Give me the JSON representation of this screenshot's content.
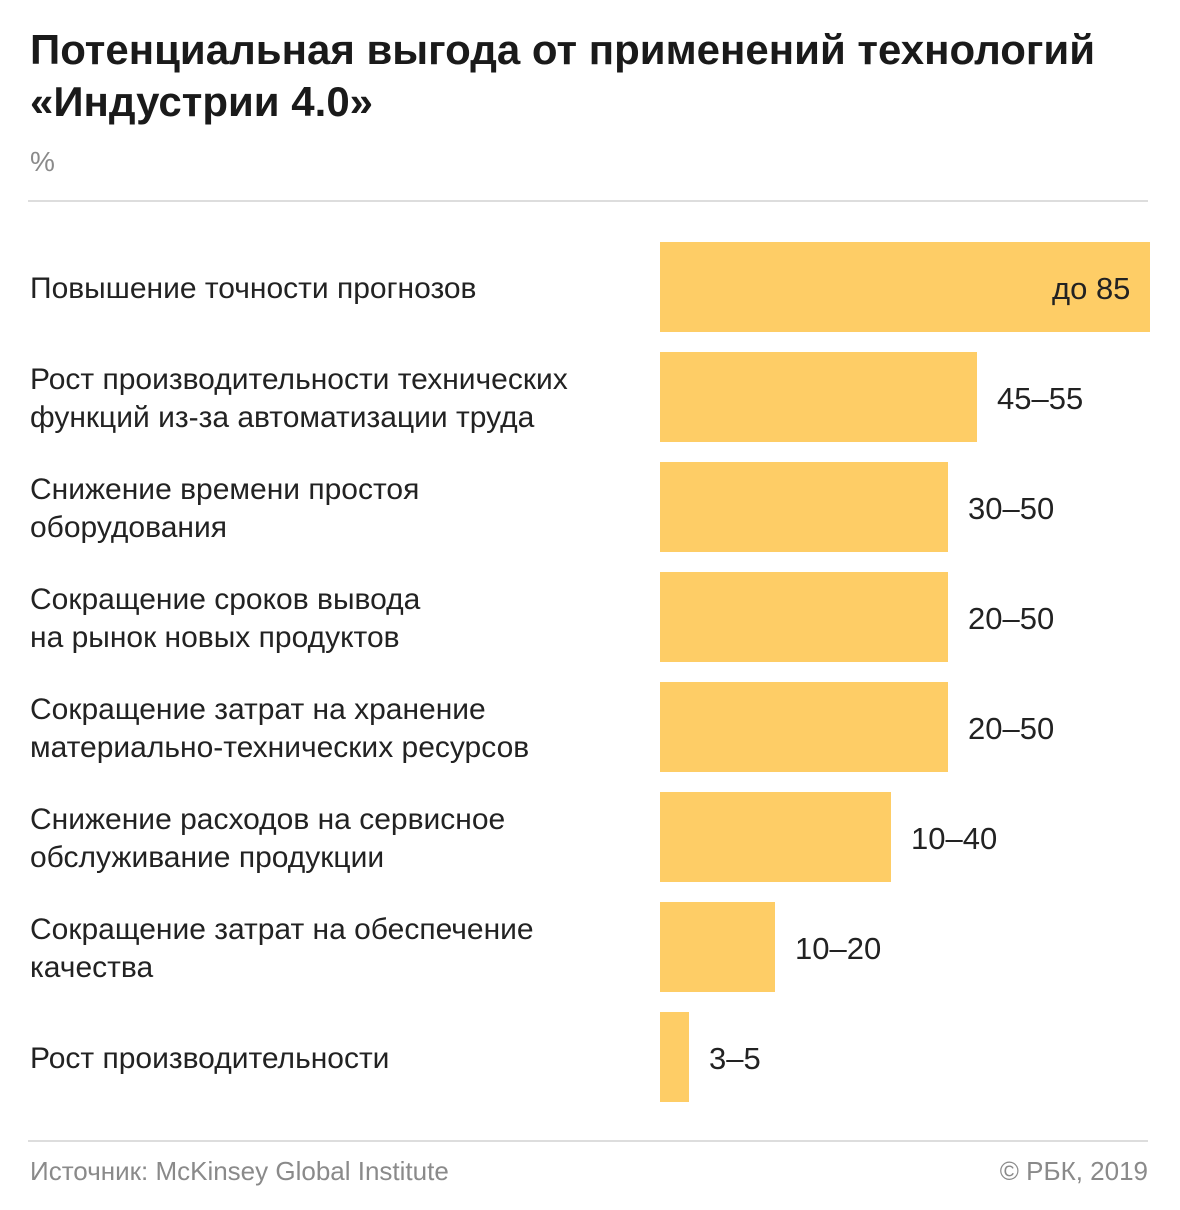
{
  "header": {
    "title": "Потенциальная выгода от применений технологий «Индустрии 4.0»",
    "unit": "%"
  },
  "chart_data": {
    "type": "bar",
    "orientation": "horizontal",
    "categories": [
      "Повышение точности прогнозов",
      "Рост производительности технических функций из-за автоматизации труда",
      "Снижение времени простоя оборудования",
      "Сокращение сроков вывода на рынок новых продуктов",
      "Сокращение затрат на хранение материально-технических ресурсов",
      "Снижение расходов на сервисное обслуживание продукции",
      "Сокращение затрат на обеспечение качества",
      "Рост производительности"
    ],
    "category_lines": [
      "Повышение точности прогнозов",
      "Рост производительности технических\nфункций из-за автоматизации труда",
      "Снижение времени простоя\nоборудования",
      "Сокращение сроков вывода\nна рынок новых продуктов",
      "Сокращение затрат на хранение\nматериально-технических ресурсов",
      "Снижение расходов на сервисное\nобслуживание продукции",
      "Сокращение затрат на обеспечение\nкачества",
      "Рост производительности"
    ],
    "values": [
      85,
      55,
      50,
      50,
      50,
      40,
      20,
      5
    ],
    "value_labels": [
      "до 85",
      "45–55",
      "30–50",
      "20–50",
      "20–50",
      "10–40",
      "10–20",
      "3–5"
    ],
    "bar_color": "#fecd66",
    "xlim": [
      0,
      85
    ],
    "grid": false,
    "legend": "none"
  },
  "footer": {
    "source": "Источник: McKinsey Global Institute",
    "copyright": "© РБК, 2019"
  }
}
